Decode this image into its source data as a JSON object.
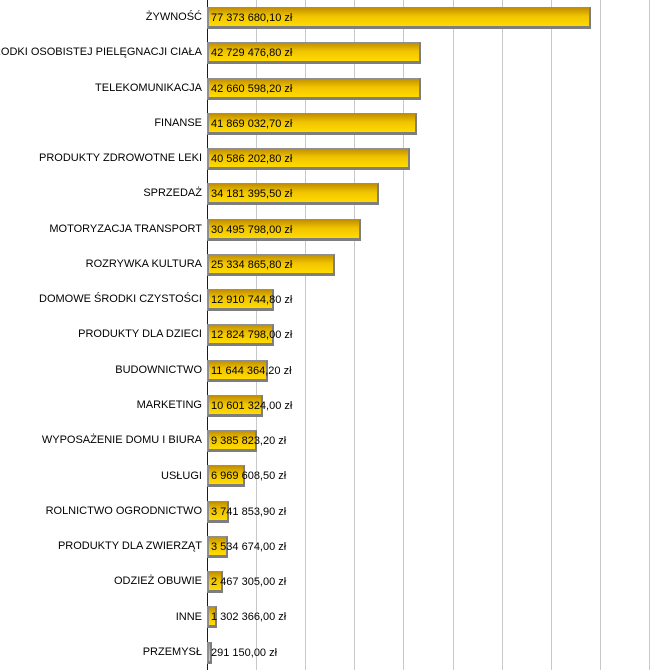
{
  "chart_data": {
    "type": "bar",
    "orientation": "horizontal",
    "title": "",
    "xlabel": "",
    "ylabel": "",
    "xlim": [
      0,
      90000000
    ],
    "gridline_interval": 10000000,
    "grid": "vertical-only",
    "legend": "none",
    "categories": [
      "ŻYWNOŚĆ",
      "ŚRODKI OSOBISTEJ PIELĘGNACJI CIAŁA",
      "TELEKOMUNIKACJA",
      "FINANSE",
      "PRODUKTY ZDROWOTNE LEKI",
      "SPRZEDAŻ",
      "MOTORYZACJA TRANSPORT",
      "ROZRYWKA KULTURA",
      "DOMOWE ŚRODKI CZYSTOŚCI",
      "PRODUKTY DLA DZIECI",
      "BUDOWNICTWO",
      "MARKETING",
      "WYPOSAŻENIE DOMU I BIURA",
      "USŁUGI",
      "ROLNICTWO OGRODNICTWO",
      "PRODUKTY DLA ZWIERZĄT",
      "ODZIEŻ OBUWIE",
      "INNE",
      "PRZEMYSŁ"
    ],
    "values": [
      77373680.1,
      42729476.8,
      42660598.2,
      41869032.7,
      40586202.8,
      34181395.5,
      30495798.0,
      25334865.8,
      12910744.8,
      12824798.0,
      11644364.2,
      10601324.0,
      9385823.2,
      6969608.5,
      3741853.9,
      3534674.0,
      2467305.0,
      1302366.0,
      291150.0
    ],
    "value_labels": [
      "77 373 680,10 zł",
      "42 729 476,80 zł",
      "42 660 598,20 zł",
      "41 869 032,70 zł",
      "40 586 202,80 zł",
      "34 181 395,50 zł",
      "30 495 798,00 zł",
      "25 334 865,80 zł",
      "12 910 744,80 zł",
      "12 824 798,00 zł",
      "11 644 364,20 zł",
      "10 601 324,00 zł",
      "9 385 823,20 zł",
      "6 969 608,50 zł",
      "3 741 853,90 zł",
      "3 534 674,00 zł",
      "2 467 305,00 zł",
      "1 302 366,00 zł",
      "291 150,00 zł"
    ],
    "colors": {
      "bar_gradient_top": "#C18F00",
      "bar_gradient_mid": "#F0C300",
      "bar_gradient_bottom": "#FFDB00",
      "bar_border": "#8F8F8F",
      "bar_border_dark": "#7E7E7E",
      "gridline": "#C9C9C9",
      "axis": "#1A1A1A",
      "text": "#000000",
      "background": "#FFFFFF"
    }
  }
}
